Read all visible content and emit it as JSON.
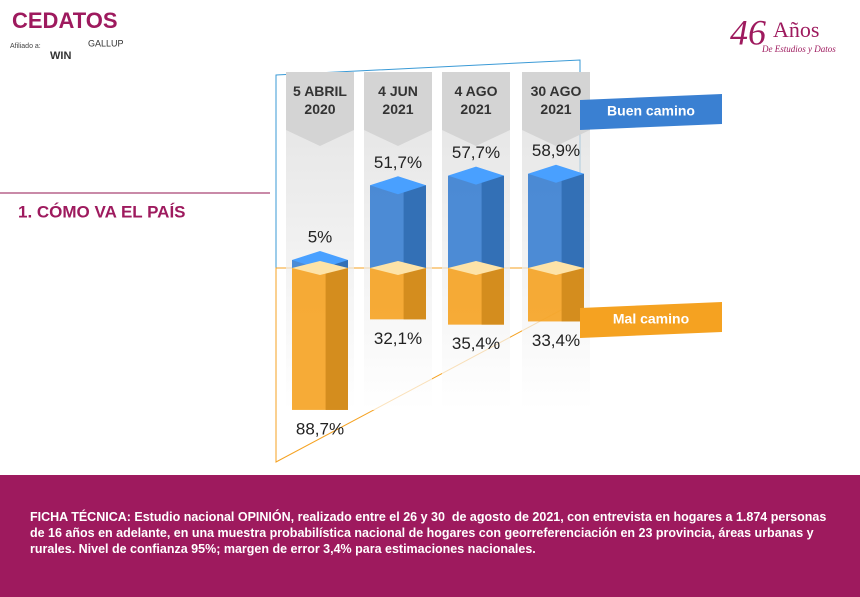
{
  "header": {
    "logo": "CEDATOS",
    "affiliation": "Afiliado a:",
    "partner_1": "WIN",
    "partner_2": "GALLUP",
    "anniversary_number": "46",
    "anniversary_word": "Años",
    "anniversary_subtitle": "De Estudios y Datos"
  },
  "section_title": "1. CÓMO VA EL PAÍS",
  "chart_data": {
    "type": "diverging_bar",
    "categories": [
      "5 ABRIL 2020",
      "4 JUN 2021",
      "4 AGO 2021",
      "30 AGO 2021"
    ],
    "series": [
      {
        "name": "Buen camino",
        "color": "#3a80d2",
        "values": [
          5,
          51.7,
          57.7,
          58.9
        ],
        "value_labels": [
          "5%",
          "51,7%",
          "57,7%",
          "58,9%"
        ]
      },
      {
        "name": "Mal camino",
        "color": "#f5a221",
        "values": [
          88.7,
          32.1,
          35.4,
          33.4
        ],
        "value_labels": [
          "88,7%",
          "32,1%",
          "35,4%",
          "33,4%"
        ]
      }
    ]
  },
  "footer": {
    "text": "FICHA TÉCNICA: Estudio nacional OPINIÓN, realizado entre el 26 y 30  de agosto de 2021, con entrevista en hogares a 1.874 personas de 16 años en adelante, en una muestra probabilística nacional de hogares con georreferenciación en 23 provincia, áreas urbanas y rurales. Nivel de confianza 95%; margen de error 3,4% para estimaciones nacionales."
  }
}
